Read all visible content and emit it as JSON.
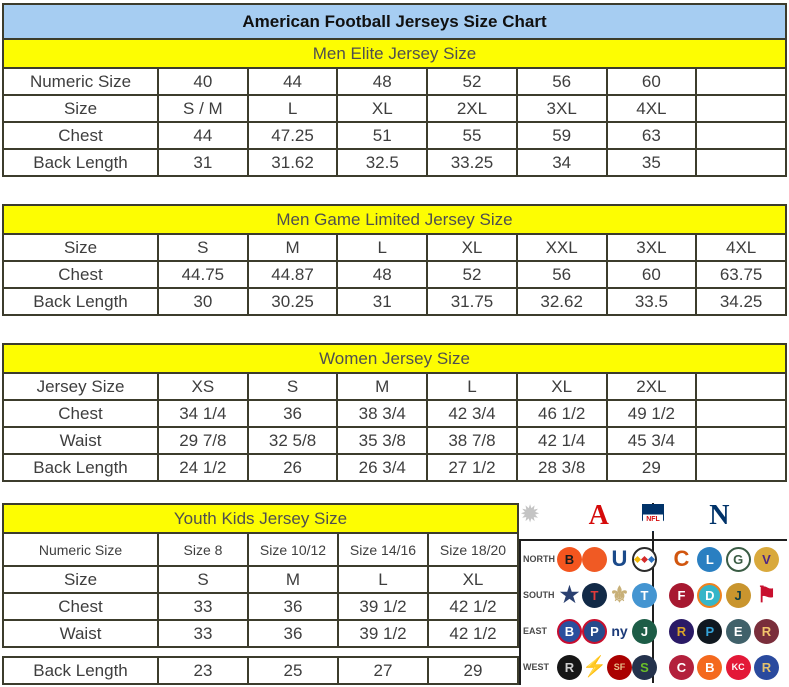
{
  "title": "American Football Jerseys Size Chart",
  "colors": {
    "title_bg": "#a6cdf2",
    "section_bg": "#fdfd02",
    "border": "#3c3c2c",
    "afc_red": "#d50a0a",
    "nfc_blue": "#013369"
  },
  "tables": {
    "men_elite": {
      "title": "Men Elite Jersey Size",
      "rows": [
        {
          "label": "Numeric Size",
          "values": [
            "40",
            "44",
            "48",
            "52",
            "56",
            "60",
            ""
          ]
        },
        {
          "label": "Size",
          "values": [
            "S / M",
            "L",
            "XL",
            "2XL",
            "3XL",
            "4XL",
            ""
          ]
        },
        {
          "label": "Chest",
          "values": [
            "44",
            "47.25",
            "51",
            "55",
            "59",
            "63",
            ""
          ]
        },
        {
          "label": "Back Length",
          "values": [
            "31",
            "31.62",
            "32.5",
            "33.25",
            "34",
            "35",
            ""
          ]
        }
      ]
    },
    "men_game": {
      "title": "Men Game Limited Jersey Size",
      "rows": [
        {
          "label": "Size",
          "values": [
            "S",
            "M",
            "L",
            "XL",
            "XXL",
            "3XL",
            "4XL"
          ]
        },
        {
          "label": "Chest",
          "values": [
            "44.75",
            "44.87",
            "48",
            "52",
            "56",
            "60",
            "63.75"
          ]
        },
        {
          "label": "Back Length",
          "values": [
            "30",
            "30.25",
            "31",
            "31.75",
            "32.62",
            "33.5",
            "34.25"
          ]
        }
      ]
    },
    "women": {
      "title": "Women Jersey Size",
      "rows": [
        {
          "label": "Jersey Size",
          "values": [
            "XS",
            "S",
            "M",
            "L",
            "XL",
            "2XL",
            ""
          ]
        },
        {
          "label": "Chest",
          "values": [
            "34 1/4",
            "36",
            "38 3/4",
            "42 3/4",
            "46 1/2",
            "49 1/2",
            ""
          ]
        },
        {
          "label": "Waist",
          "values": [
            "29 7/8",
            "32 5/8",
            "35 3/8",
            "38 7/8",
            "42 1/4",
            "45 3/4",
            ""
          ]
        },
        {
          "label": "Back Length",
          "values": [
            "24 1/2",
            "26",
            "26 3/4",
            "27 1/2",
            "28 3/8",
            "29",
            ""
          ]
        }
      ]
    },
    "youth": {
      "title": "Youth Kids Jersey Size",
      "rows": [
        {
          "label": "Numeric Size",
          "values": [
            "Size 8",
            "Size 10/12",
            "Size 14/16",
            "Size 18/20"
          ],
          "small": true
        },
        {
          "label": "Size",
          "values": [
            "S",
            "M",
            "L",
            "XL"
          ]
        },
        {
          "label": "Chest",
          "values": [
            "33",
            "36",
            "39 1/2",
            "42 1/2"
          ]
        },
        {
          "label": "Waist",
          "values": [
            "33",
            "36",
            "39 1/2",
            "42 1/2"
          ]
        }
      ]
    },
    "youth_back": {
      "rows": [
        {
          "label": "Back Length",
          "values": [
            "23",
            "25",
            "27",
            "29"
          ]
        }
      ]
    }
  },
  "nfl_panel": {
    "starburst": "✹",
    "afc": "A",
    "shield": "NFL",
    "nfc": "N",
    "divisions": [
      {
        "label": "NORTH",
        "afc": [
          {
            "team": "bengals",
            "label": "B",
            "bg": "#f4551e",
            "fg": "#1a1a1a"
          },
          {
            "team": "browns",
            "label": "",
            "bg": "#f05a24",
            "fg": "#ffffff"
          },
          {
            "team": "colts",
            "label": "U",
            "shape": "glyph",
            "fg": "#1b4a8a"
          },
          {
            "team": "steelers",
            "label": "",
            "bg": "#ffffff",
            "fg": "#333333",
            "border": "#2b2b2b",
            "dots": [
              "#f2b705",
              "#d42a2a",
              "#2a6ebb"
            ]
          }
        ],
        "nfc": [
          {
            "team": "bears",
            "label": "C",
            "shape": "glyph",
            "fg": "#d1560f"
          },
          {
            "team": "lions",
            "label": "L",
            "bg": "#2a7fc1",
            "fg": "#ffffff"
          },
          {
            "team": "packers",
            "label": "G",
            "bg": "#ffffff",
            "fg": "#3a5c44",
            "border": "#3a5c44"
          },
          {
            "team": "vikings",
            "label": "V",
            "bg": "#d9a93c",
            "fg": "#4f2683"
          }
        ]
      },
      {
        "label": "SOUTH",
        "afc": [
          {
            "team": "cowboys",
            "label": "★",
            "shape": "glyph",
            "fg": "#2a4070"
          },
          {
            "team": "texans",
            "label": "T",
            "bg": "#122a47",
            "fg": "#e23b3b"
          },
          {
            "team": "saints",
            "label": "⚜",
            "shape": "glyph",
            "fg": "#c8b078"
          },
          {
            "team": "titans",
            "label": "T",
            "bg": "#4495d1",
            "fg": "#ffffff"
          }
        ],
        "nfc": [
          {
            "team": "falcons",
            "label": "F",
            "bg": "#a71930",
            "fg": "#ffffff"
          },
          {
            "team": "dolphins",
            "label": "D",
            "bg": "#36b5c8",
            "fg": "#ffffff",
            "border": "#f0821e"
          },
          {
            "team": "jaguars",
            "label": "J",
            "bg": "#c9952e",
            "fg": "#0d3b44"
          },
          {
            "team": "buccaneers",
            "label": "⚑",
            "shape": "glyph",
            "fg": "#c8102e"
          }
        ]
      },
      {
        "label": "EAST",
        "afc": [
          {
            "team": "bills",
            "label": "B",
            "bg": "#2a4f9e",
            "fg": "#ffffff",
            "border": "#c60c30"
          },
          {
            "team": "patriots",
            "label": "P",
            "bg": "#264b8c",
            "fg": "#ffffff",
            "border": "#c8102e"
          },
          {
            "team": "giants",
            "label": "ny",
            "shape": "glyph",
            "fg": "#1b3a78",
            "size": "14"
          },
          {
            "team": "jets",
            "label": "J",
            "bg": "#1d5d47",
            "fg": "#ffffff"
          }
        ],
        "nfc": [
          {
            "team": "ravens",
            "label": "R",
            "bg": "#2a1a66",
            "fg": "#d7a22a"
          },
          {
            "team": "panthers",
            "label": "P",
            "bg": "#101820",
            "fg": "#35a3d9"
          },
          {
            "team": "eagles",
            "label": "E",
            "bg": "#40616a",
            "fg": "#ffffff"
          },
          {
            "team": "redskins",
            "label": "R",
            "bg": "#7a2e3b",
            "fg": "#f2c36b"
          }
        ]
      },
      {
        "label": "WEST",
        "afc": [
          {
            "team": "raiders",
            "label": "R",
            "bg": "#161616",
            "fg": "#cfcfcf"
          },
          {
            "team": "chargers",
            "label": "⚡",
            "shape": "glyph",
            "fg": "#f2b705",
            "size": "20"
          },
          {
            "team": "49ers",
            "label": "SF",
            "bg": "#aa0000",
            "fg": "#e8c08a",
            "size": "9"
          },
          {
            "team": "seahawks",
            "label": "S",
            "bg": "#24324c",
            "fg": "#69be28"
          }
        ],
        "nfc": [
          {
            "team": "cardinals",
            "label": "C",
            "bg": "#b3203c",
            "fg": "#ffffff"
          },
          {
            "team": "broncos",
            "label": "B",
            "bg": "#f4691e",
            "fg": "#ffffff"
          },
          {
            "team": "chiefs",
            "label": "KC",
            "bg": "#e31837",
            "fg": "#ffffff",
            "size": "9"
          },
          {
            "team": "rams",
            "label": "R",
            "bg": "#2a4a9e",
            "fg": "#e2c06e"
          }
        ]
      }
    ]
  }
}
